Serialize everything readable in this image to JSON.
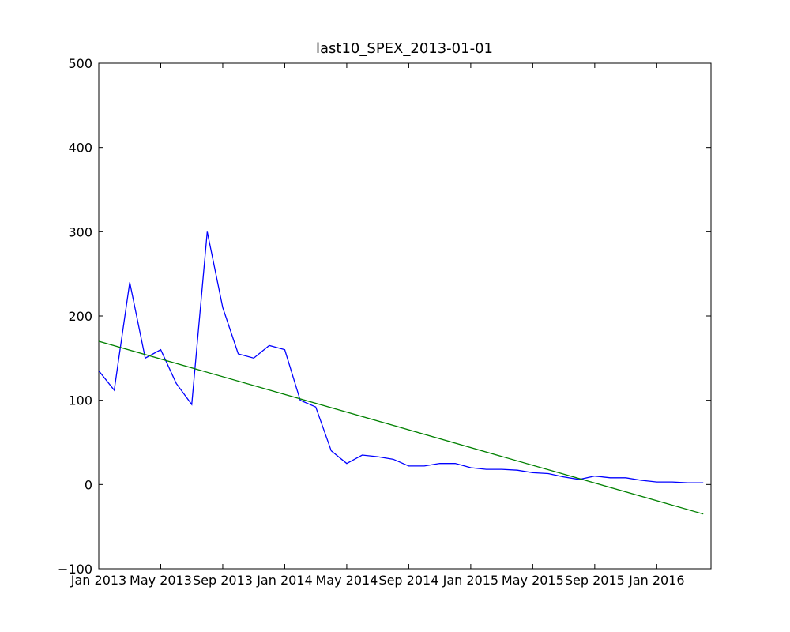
{
  "chart_data": {
    "type": "line",
    "title": "last10_SPEX_2013-01-01",
    "x": [
      "2013-01",
      "2013-02",
      "2013-03",
      "2013-04",
      "2013-05",
      "2013-06",
      "2013-07",
      "2013-08",
      "2013-09",
      "2013-10",
      "2013-11",
      "2013-12",
      "2014-01",
      "2014-02",
      "2014-03",
      "2014-04",
      "2014-05",
      "2014-06",
      "2014-07",
      "2014-08",
      "2014-09",
      "2014-10",
      "2014-11",
      "2014-12",
      "2015-01",
      "2015-02",
      "2015-03",
      "2015-04",
      "2015-05",
      "2015-06",
      "2015-07",
      "2015-08",
      "2015-09",
      "2015-10",
      "2015-11",
      "2015-12",
      "2016-01",
      "2016-02",
      "2016-03",
      "2016-04"
    ],
    "series": [
      {
        "color": "#0000ff",
        "values": [
          135,
          112,
          240,
          150,
          160,
          120,
          95,
          300,
          210,
          155,
          150,
          165,
          160,
          100,
          92,
          40,
          25,
          35,
          33,
          30,
          22,
          22,
          25,
          25,
          20,
          18,
          18,
          17,
          14,
          13,
          9,
          6,
          10,
          8,
          8,
          5,
          3,
          3,
          2,
          2
        ]
      },
      {
        "color": "#008000",
        "x": [
          "2013-01",
          "2016-04"
        ],
        "values": [
          170,
          -35
        ]
      }
    ],
    "xlim": [
      "2013-01",
      "2016-04"
    ],
    "xticks": [
      {
        "value": "2013-01",
        "label": "Jan 2013"
      },
      {
        "value": "2013-05",
        "label": "May 2013"
      },
      {
        "value": "2013-09",
        "label": "Sep 2013"
      },
      {
        "value": "2014-01",
        "label": "Jan 2014"
      },
      {
        "value": "2014-05",
        "label": "May 2014"
      },
      {
        "value": "2014-09",
        "label": "Sep 2014"
      },
      {
        "value": "2015-01",
        "label": "Jan 2015"
      },
      {
        "value": "2015-05",
        "label": "May 2015"
      },
      {
        "value": "2015-09",
        "label": "Sep 2015"
      },
      {
        "value": "2016-01",
        "label": "Jan 2016"
      }
    ],
    "ylim": [
      -100,
      500
    ],
    "yticks": [
      {
        "value": -100,
        "label": "−100"
      },
      0,
      100,
      200,
      300,
      400,
      500
    ]
  }
}
